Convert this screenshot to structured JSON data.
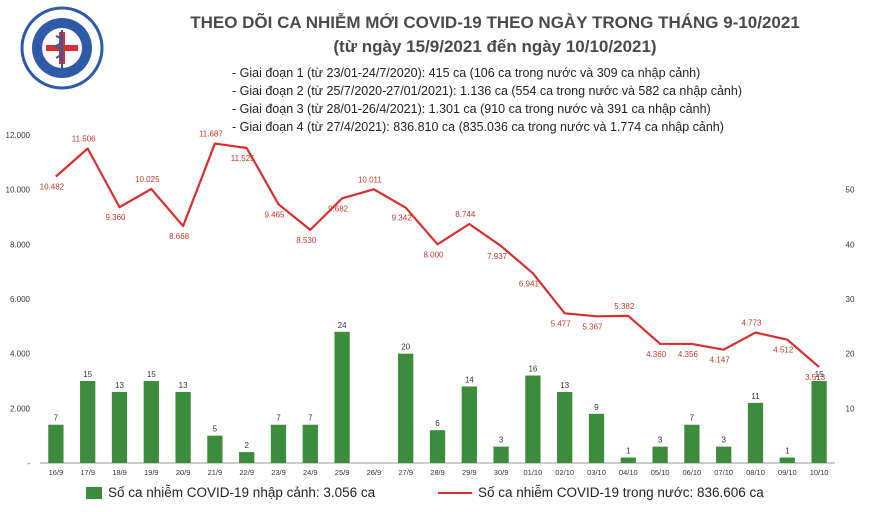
{
  "header": {
    "logo_text_top": "BỘ Y TẾ",
    "logo_text_bottom": "MINISTRY OF HEALTH",
    "title": "THEO DÕI CA NHIỄM MỚI COVID-19 THEO NGÀY TRONG THÁNG 9-10/2021",
    "subtitle": "(từ ngày 15/9/2021 đến ngày 10/10/2021)"
  },
  "stages": [
    "- Giai đoạn 1 (từ 23/01-24/7/2020): 415 ca (106 ca trong nước và 309 ca nhập cảnh)",
    "- Giai đoạn 2 (từ 25/7/2020-27/01/2021): 1.136 ca (554 ca trong nước và 582 ca nhập cảnh)",
    "- Giai đoạn 3 (từ 28/01-26/4/2021): 1.301 ca (910 ca trong nước và 391 ca nhập cảnh)",
    "- Giai đoạn 4 (từ 27/4/2021): 836.810 ca (835.036 ca trong nước và 1.774 ca nhập cảnh)"
  ],
  "legend": {
    "bar_label": "Số ca nhiễm COVID-19 nhập cảnh: 3.056 ca",
    "line_label": "Số ca nhiễm COVID-19 trong nước: 836.606 ca"
  },
  "colors": {
    "bar": "#3d8b3d",
    "line": "#d62f2f",
    "title": "#4a4a4a",
    "logo": "#2e5aa8"
  },
  "chart_data": {
    "type": "bar+line",
    "categories": [
      "16/9",
      "17/9",
      "18/9",
      "19/9",
      "20/9",
      "21/9",
      "22/9",
      "23/9",
      "24/9",
      "25/9",
      "26/9",
      "27/9",
      "28/9",
      "29/9",
      "30/9",
      "01/10",
      "02/10",
      "03/10",
      "04/10",
      "05/10",
      "06/10",
      "07/10",
      "08/10",
      "09/10",
      "10/10"
    ],
    "series": [
      {
        "name": "Số ca nhiễm COVID-19 nhập cảnh: 3.056 ca",
        "type": "bar",
        "axis": "right",
        "values": [
          7,
          15,
          13,
          15,
          13,
          5,
          2,
          7,
          7,
          24,
          0,
          20,
          6,
          14,
          3,
          16,
          13,
          9,
          1,
          3,
          7,
          3,
          11,
          1,
          15
        ],
        "labels": [
          "7",
          "15",
          "13",
          "15",
          "13",
          "5",
          "2",
          "7",
          "7",
          "24",
          "",
          "20",
          "6",
          "14",
          "3",
          "16",
          "13",
          "9",
          "1",
          "3",
          "7",
          "3",
          "11",
          "1",
          "15"
        ]
      },
      {
        "name": "Số ca nhiễm COVID-19 trong nước: 836.606 ca",
        "type": "line",
        "axis": "left",
        "values": [
          10482,
          11506,
          9360,
          10025,
          8668,
          11687,
          11525,
          9465,
          8530,
          9682,
          10011,
          9342,
          8000,
          8744,
          7937,
          6941,
          5477,
          5367,
          5382,
          4360,
          4356,
          4147,
          4773,
          4512,
          3513
        ],
        "labels": [
          "10.482",
          "11.506",
          "9.360",
          "10.025",
          "8.668",
          "11.687",
          "11.525",
          "9.465",
          "8.530",
          "9.682",
          "10.011",
          "9.342",
          "8.000",
          "8.744",
          "7.937",
          "6.941",
          "5.477",
          "5.367",
          "5.382",
          "4.360",
          "4.356",
          "4.147",
          "4.773",
          "4.512",
          "3.513"
        ]
      }
    ],
    "y_left": {
      "range": [
        0,
        12000
      ],
      "ticks": [
        0,
        2000,
        4000,
        6000,
        8000,
        10000,
        12000
      ],
      "tick_labels": [
        "-",
        "2.000",
        "4.000",
        "6.000",
        "8.000",
        "10.000",
        "12.000"
      ]
    },
    "y_right": {
      "range": [
        0,
        60
      ],
      "ticks": [
        10,
        20,
        30,
        40,
        50
      ],
      "tick_labels": [
        "10",
        "20",
        "30",
        "40",
        "50"
      ]
    },
    "grid": false,
    "legend_position": "bottom"
  }
}
